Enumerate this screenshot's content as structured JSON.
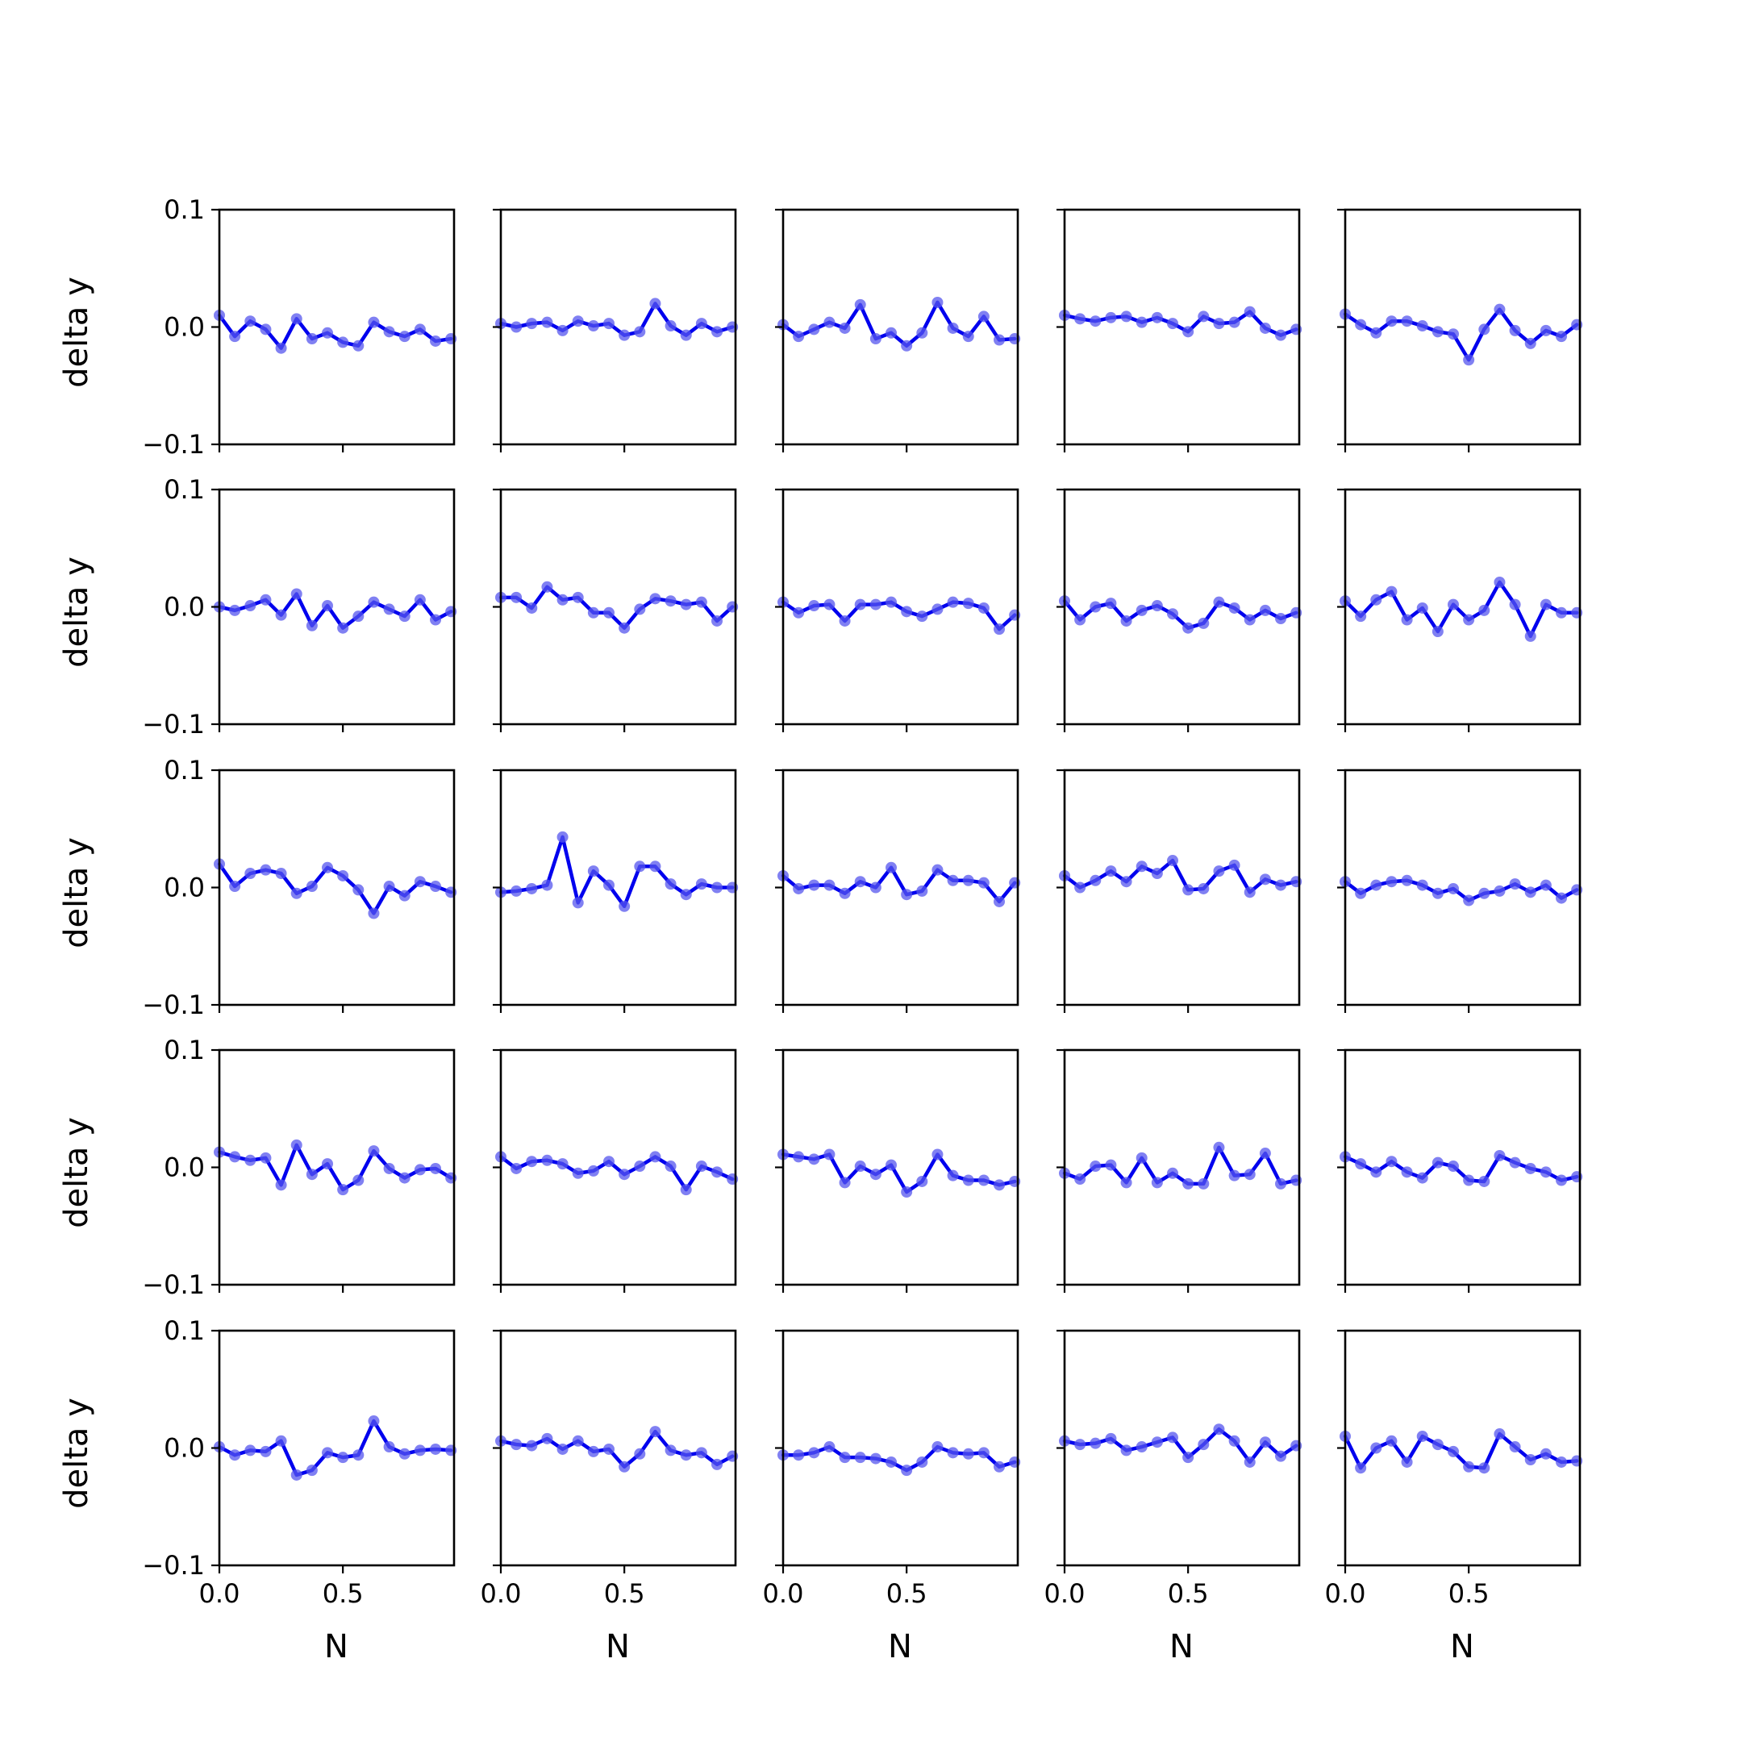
{
  "chart_data": {
    "type": "line",
    "layout": "5x5 grid of subplots",
    "xlabel": "N",
    "ylabel": "delta y",
    "xlim": [
      0,
      0.95
    ],
    "ylim": [
      -0.1,
      0.1
    ],
    "xticks": [
      0.0,
      0.5
    ],
    "xtick_labels": [
      "0.0",
      "0.5"
    ],
    "yticks": [
      0.1,
      0.0,
      -0.1
    ],
    "ytick_labels": [
      "0.1",
      "0.0",
      "−0.1"
    ],
    "x": [
      0.0,
      0.0625,
      0.125,
      0.1875,
      0.25,
      0.3125,
      0.375,
      0.4375,
      0.5,
      0.5625,
      0.625,
      0.6875,
      0.75,
      0.8125,
      0.875,
      0.9375
    ],
    "line_color": "#0000ee",
    "marker_color": "#5555ee",
    "grid": false,
    "panels": [
      {
        "values": [
          0.01,
          -0.008,
          0.005,
          -0.002,
          -0.018,
          0.007,
          -0.01,
          -0.005,
          -0.013,
          -0.016,
          0.004,
          -0.004,
          -0.008,
          -0.002,
          -0.012,
          -0.01
        ]
      },
      {
        "values": [
          0.003,
          0.0,
          0.003,
          0.004,
          -0.003,
          0.005,
          0.001,
          0.003,
          -0.007,
          -0.004,
          0.02,
          0.001,
          -0.007,
          0.003,
          -0.004,
          0.0
        ]
      },
      {
        "values": [
          0.002,
          -0.008,
          -0.002,
          0.004,
          -0.001,
          0.019,
          -0.01,
          -0.005,
          -0.016,
          -0.005,
          0.021,
          -0.001,
          -0.008,
          0.009,
          -0.011,
          -0.01
        ]
      },
      {
        "values": [
          0.01,
          0.007,
          0.005,
          0.008,
          0.009,
          0.004,
          0.008,
          0.003,
          -0.004,
          0.009,
          0.003,
          0.004,
          0.013,
          -0.001,
          -0.007,
          -0.002
        ]
      },
      {
        "values": [
          0.011,
          0.002,
          -0.005,
          0.005,
          0.005,
          0.001,
          -0.004,
          -0.006,
          -0.028,
          -0.002,
          0.015,
          -0.003,
          -0.014,
          -0.003,
          -0.008,
          0.002
        ]
      },
      {
        "values": [
          0.0,
          -0.003,
          0.001,
          0.006,
          -0.007,
          0.011,
          -0.016,
          0.001,
          -0.018,
          -0.008,
          0.004,
          -0.002,
          -0.008,
          0.006,
          -0.011,
          -0.004
        ]
      },
      {
        "values": [
          0.008,
          0.008,
          -0.001,
          0.017,
          0.006,
          0.008,
          -0.005,
          -0.005,
          -0.018,
          -0.002,
          0.007,
          0.005,
          0.002,
          0.004,
          -0.012,
          0.0
        ]
      },
      {
        "values": [
          0.004,
          -0.005,
          0.001,
          0.002,
          -0.012,
          0.002,
          0.002,
          0.004,
          -0.004,
          -0.008,
          -0.002,
          0.004,
          0.003,
          -0.001,
          -0.019,
          -0.007
        ]
      },
      {
        "values": [
          0.005,
          -0.011,
          0.0,
          0.003,
          -0.012,
          -0.003,
          0.001,
          -0.006,
          -0.018,
          -0.014,
          0.004,
          -0.001,
          -0.011,
          -0.003,
          -0.01,
          -0.005
        ]
      },
      {
        "values": [
          0.005,
          -0.008,
          0.006,
          0.013,
          -0.011,
          -0.001,
          -0.021,
          0.002,
          -0.011,
          -0.003,
          0.021,
          0.002,
          -0.025,
          0.002,
          -0.005,
          -0.005
        ]
      },
      {
        "values": [
          0.02,
          0.001,
          0.012,
          0.015,
          0.012,
          -0.005,
          0.001,
          0.017,
          0.01,
          -0.002,
          -0.022,
          0.001,
          -0.007,
          0.005,
          0.001,
          -0.004
        ]
      },
      {
        "values": [
          -0.004,
          -0.003,
          -0.001,
          0.002,
          0.043,
          -0.013,
          0.014,
          0.002,
          -0.016,
          0.018,
          0.018,
          0.003,
          -0.006,
          0.003,
          0.0,
          0.0
        ]
      },
      {
        "values": [
          0.01,
          -0.001,
          0.002,
          0.002,
          -0.005,
          0.005,
          0.0,
          0.017,
          -0.006,
          -0.003,
          0.015,
          0.006,
          0.006,
          0.004,
          -0.012,
          0.004
        ]
      },
      {
        "values": [
          0.01,
          0.0,
          0.006,
          0.014,
          0.005,
          0.018,
          0.012,
          0.023,
          -0.002,
          -0.001,
          0.014,
          0.019,
          -0.004,
          0.007,
          0.002,
          0.005
        ]
      },
      {
        "values": [
          0.005,
          -0.005,
          0.002,
          0.005,
          0.006,
          0.002,
          -0.005,
          -0.001,
          -0.011,
          -0.005,
          -0.003,
          0.003,
          -0.004,
          0.002,
          -0.009,
          -0.002
        ]
      },
      {
        "values": [
          0.013,
          0.009,
          0.006,
          0.008,
          -0.015,
          0.019,
          -0.006,
          0.003,
          -0.019,
          -0.011,
          0.014,
          -0.001,
          -0.009,
          -0.002,
          -0.001,
          -0.009
        ]
      },
      {
        "values": [
          0.009,
          -0.001,
          0.005,
          0.006,
          0.003,
          -0.005,
          -0.003,
          0.005,
          -0.006,
          0.001,
          0.009,
          0.001,
          -0.019,
          0.001,
          -0.004,
          -0.01
        ]
      },
      {
        "values": [
          0.011,
          0.009,
          0.007,
          0.011,
          -0.013,
          0.001,
          -0.006,
          0.002,
          -0.021,
          -0.012,
          0.011,
          -0.007,
          -0.011,
          -0.011,
          -0.015,
          -0.012
        ]
      },
      {
        "values": [
          -0.005,
          -0.01,
          0.001,
          0.002,
          -0.013,
          0.008,
          -0.013,
          -0.005,
          -0.014,
          -0.014,
          0.017,
          -0.007,
          -0.006,
          0.012,
          -0.014,
          -0.011
        ]
      },
      {
        "values": [
          0.009,
          0.003,
          -0.004,
          0.005,
          -0.004,
          -0.009,
          0.004,
          0.001,
          -0.011,
          -0.012,
          0.01,
          0.004,
          -0.001,
          -0.004,
          -0.011,
          -0.008
        ]
      },
      {
        "values": [
          0.001,
          -0.006,
          -0.002,
          -0.003,
          0.006,
          -0.023,
          -0.019,
          -0.004,
          -0.008,
          -0.006,
          0.023,
          0.001,
          -0.005,
          -0.002,
          -0.001,
          -0.002
        ]
      },
      {
        "values": [
          0.006,
          0.003,
          0.002,
          0.008,
          -0.001,
          0.006,
          -0.003,
          -0.001,
          -0.016,
          -0.005,
          0.014,
          -0.002,
          -0.006,
          -0.004,
          -0.014,
          -0.007
        ]
      },
      {
        "values": [
          -0.006,
          -0.006,
          -0.004,
          0.001,
          -0.008,
          -0.008,
          -0.009,
          -0.012,
          -0.019,
          -0.012,
          0.001,
          -0.004,
          -0.005,
          -0.004,
          -0.016,
          -0.012
        ]
      },
      {
        "values": [
          0.006,
          0.003,
          0.004,
          0.008,
          -0.002,
          0.001,
          0.005,
          0.009,
          -0.008,
          0.003,
          0.016,
          0.006,
          -0.012,
          0.005,
          -0.007,
          0.002
        ]
      },
      {
        "values": [
          0.01,
          -0.017,
          0.0,
          0.006,
          -0.012,
          0.01,
          0.003,
          -0.003,
          -0.016,
          -0.017,
          0.012,
          0.001,
          -0.01,
          -0.005,
          -0.012,
          -0.011
        ]
      }
    ]
  }
}
